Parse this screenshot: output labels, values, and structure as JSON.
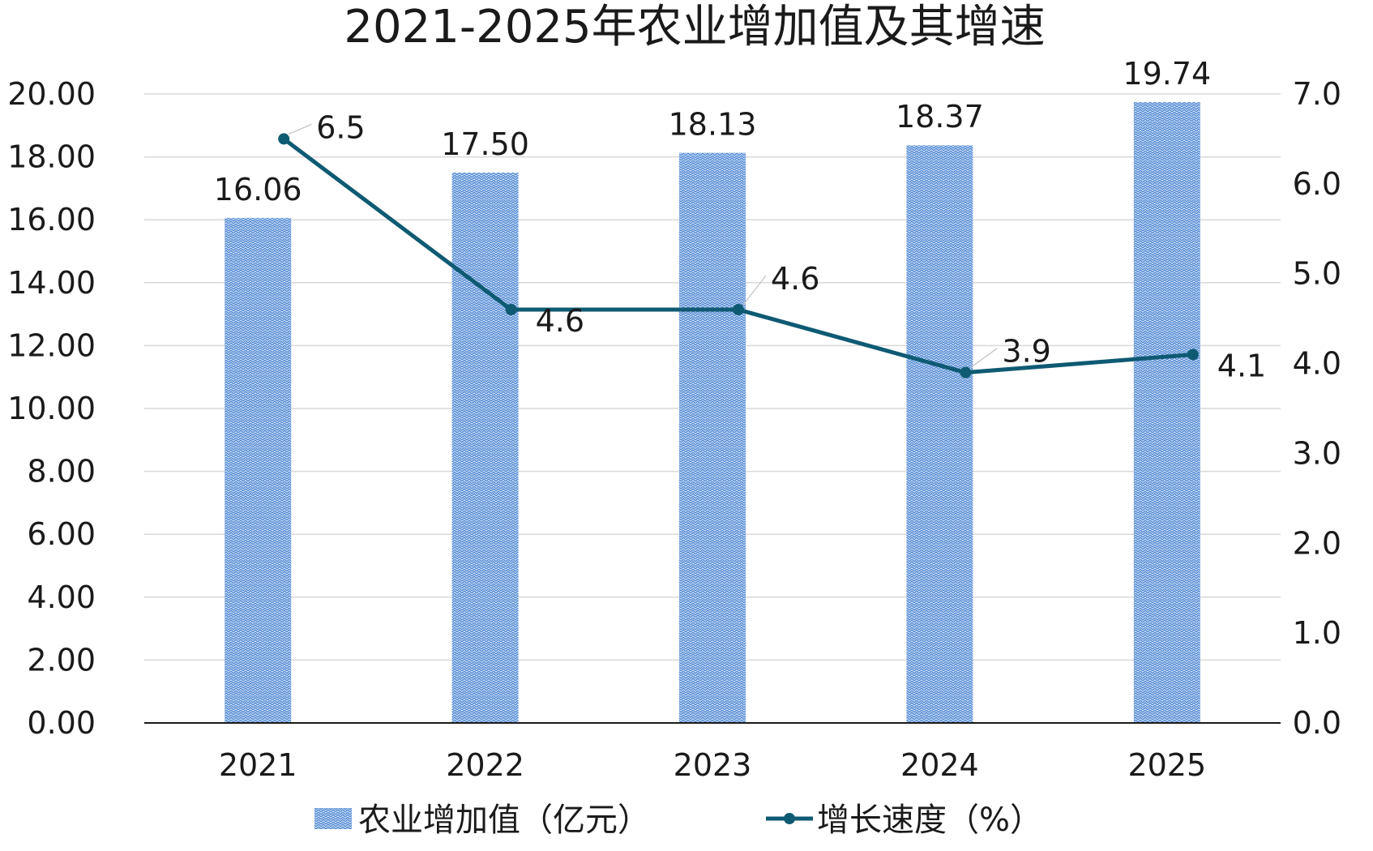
{
  "chart_data": {
    "type": "bar",
    "title": "2021-2025年农业增加值及其增速",
    "categories": [
      "2021",
      "2022",
      "2023",
      "2024",
      "2025"
    ],
    "series": [
      {
        "name": "农业增加值（亿元）",
        "type": "bar",
        "axis": "left",
        "values": [
          16.06,
          17.5,
          18.13,
          18.37,
          19.74
        ],
        "labels": [
          "16.06",
          "17.50",
          "18.13",
          "18.37",
          "19.74"
        ],
        "color": "#5b8fd6"
      },
      {
        "name": "增长速度（%）",
        "type": "line",
        "axis": "right",
        "values": [
          6.5,
          4.6,
          4.6,
          3.9,
          4.1
        ],
        "labels": [
          "6.5",
          "4.6",
          "4.6",
          "3.9",
          "4.1"
        ],
        "color": "#0f5a73"
      }
    ],
    "y_left": {
      "ylim": [
        0,
        20
      ],
      "ticks": [
        "0.00",
        "2.00",
        "4.00",
        "6.00",
        "8.00",
        "10.00",
        "12.00",
        "14.00",
        "16.00",
        "18.00",
        "20.00"
      ]
    },
    "y_right": {
      "ylim": [
        0,
        7
      ],
      "ticks": [
        "0.0",
        "1.0",
        "2.0",
        "3.0",
        "4.0",
        "5.0",
        "6.0",
        "7.0"
      ]
    },
    "grid": true,
    "legend_position": "bottom"
  }
}
